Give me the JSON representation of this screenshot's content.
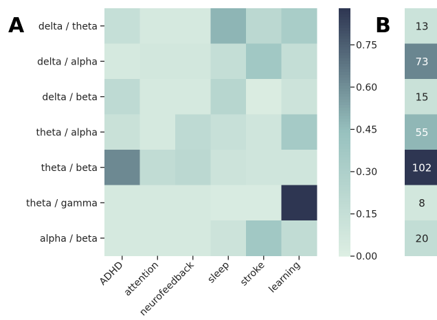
{
  "panel_labels": {
    "a": "A",
    "b": "B"
  },
  "colors": {
    "scale_low": "#ddeee3",
    "scale_mid": "#98c2bf",
    "scale_high": "#2e3652",
    "dark_text": "#222222",
    "light_text": "#ffffff"
  },
  "chart_data": [
    {
      "type": "heatmap",
      "title": "",
      "xlabel": "",
      "ylabel": "",
      "x_categories": [
        "ADHD",
        "attention",
        "neurofeedback",
        "sleep",
        "stroke",
        "learning"
      ],
      "y_categories": [
        "delta / theta",
        "delta / alpha",
        "delta / beta",
        "theta / alpha",
        "theta / beta",
        "theta / gamma",
        "alpha / beta"
      ],
      "values": [
        [
          0.15,
          0.05,
          0.05,
          0.48,
          0.22,
          0.33
        ],
        [
          0.05,
          0.07,
          0.07,
          0.16,
          0.38,
          0.16
        ],
        [
          0.2,
          0.05,
          0.05,
          0.24,
          0.02,
          0.11
        ],
        [
          0.13,
          0.05,
          0.2,
          0.14,
          0.09,
          0.36
        ],
        [
          0.62,
          0.18,
          0.22,
          0.11,
          0.09,
          0.09
        ],
        [
          0.05,
          0.05,
          0.05,
          0.03,
          0.03,
          0.88
        ],
        [
          0.05,
          0.05,
          0.05,
          0.11,
          0.38,
          0.18
        ]
      ],
      "colorbar": {
        "range": [
          0,
          0.88
        ],
        "ticks": [
          0,
          0.15,
          0.3,
          0.45,
          0.6,
          0.75
        ],
        "tick_labels": [
          "0.00",
          "0.15",
          "0.30",
          "0.45",
          "0.60",
          "0.75"
        ]
      }
    },
    {
      "type": "heatmap",
      "title": "",
      "categories": [
        "delta / theta",
        "delta / alpha",
        "delta / beta",
        "theta / alpha",
        "theta / beta",
        "theta / gamma",
        "alpha / beta"
      ],
      "values": [
        13,
        73,
        15,
        55,
        102,
        8,
        20
      ],
      "value_range": [
        0,
        102
      ]
    }
  ]
}
